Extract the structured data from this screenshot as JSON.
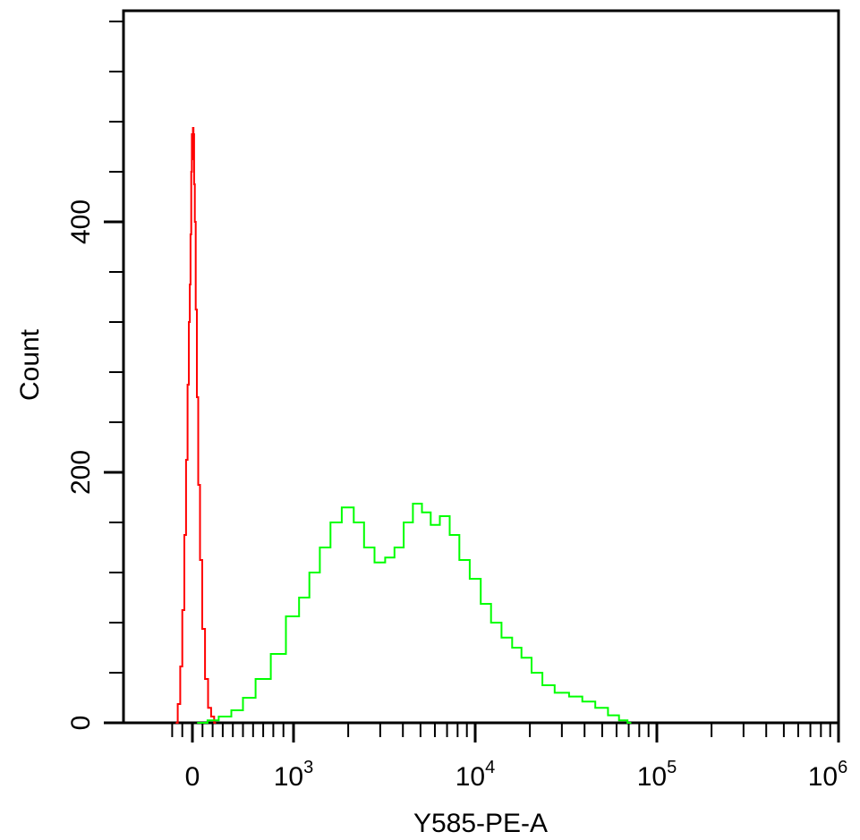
{
  "chart_data": {
    "type": "histogram",
    "title": "",
    "xlabel": "Y585-PE-A",
    "ylabel": "Count",
    "x_scale": "biexponential",
    "xlim": [
      -200,
      1000000
    ],
    "ylim": [
      0,
      560
    ],
    "x_tick_labels": [
      {
        "base": "0",
        "exp": ""
      },
      {
        "base": "10",
        "exp": "3"
      },
      {
        "base": "10",
        "exp": "4"
      },
      {
        "base": "10",
        "exp": "5"
      },
      {
        "base": "10",
        "exp": "6"
      }
    ],
    "y_ticks": [
      0,
      200,
      400
    ],
    "y_tick_labels": [
      "0",
      "200",
      "400"
    ],
    "grid": false,
    "series": [
      {
        "color": "#ff0000",
        "points": [
          [
            -160,
            0
          ],
          [
            -130,
            15
          ],
          [
            -110,
            45
          ],
          [
            -90,
            90
          ],
          [
            -70,
            150
          ],
          [
            -55,
            210
          ],
          [
            -40,
            270
          ],
          [
            -30,
            320
          ],
          [
            -22,
            350
          ],
          [
            -15,
            390
          ],
          [
            -8,
            440
          ],
          [
            -3,
            470
          ],
          [
            3,
            450
          ],
          [
            8,
            475
          ],
          [
            14,
            470
          ],
          [
            20,
            430
          ],
          [
            28,
            400
          ],
          [
            38,
            330
          ],
          [
            50,
            260
          ],
          [
            65,
            190
          ],
          [
            85,
            130
          ],
          [
            110,
            75
          ],
          [
            140,
            35
          ],
          [
            170,
            12
          ],
          [
            200,
            5
          ],
          [
            230,
            0
          ]
        ]
      },
      {
        "color": "#00ff00",
        "points": [
          [
            50,
            0
          ],
          [
            100,
            0
          ],
          [
            200,
            2
          ],
          [
            320,
            5
          ],
          [
            450,
            10
          ],
          [
            550,
            20
          ],
          [
            700,
            35
          ],
          [
            850,
            55
          ],
          [
            1000,
            85
          ],
          [
            1150,
            100
          ],
          [
            1300,
            120
          ],
          [
            1500,
            140
          ],
          [
            1700,
            160
          ],
          [
            2000,
            172
          ],
          [
            2300,
            160
          ],
          [
            2600,
            140
          ],
          [
            3000,
            128
          ],
          [
            3400,
            132
          ],
          [
            3800,
            140
          ],
          [
            4300,
            160
          ],
          [
            4800,
            175
          ],
          [
            5400,
            168
          ],
          [
            6000,
            158
          ],
          [
            6800,
            165
          ],
          [
            7700,
            150
          ],
          [
            8700,
            130
          ],
          [
            10000,
            115
          ],
          [
            11500,
            95
          ],
          [
            13000,
            80
          ],
          [
            15000,
            68
          ],
          [
            17000,
            60
          ],
          [
            19000,
            52
          ],
          [
            22000,
            40
          ],
          [
            25000,
            30
          ],
          [
            30000,
            24
          ],
          [
            36000,
            21
          ],
          [
            42000,
            17
          ],
          [
            50000,
            12
          ],
          [
            58000,
            6
          ],
          [
            66000,
            2
          ],
          [
            72000,
            0
          ]
        ]
      }
    ]
  }
}
